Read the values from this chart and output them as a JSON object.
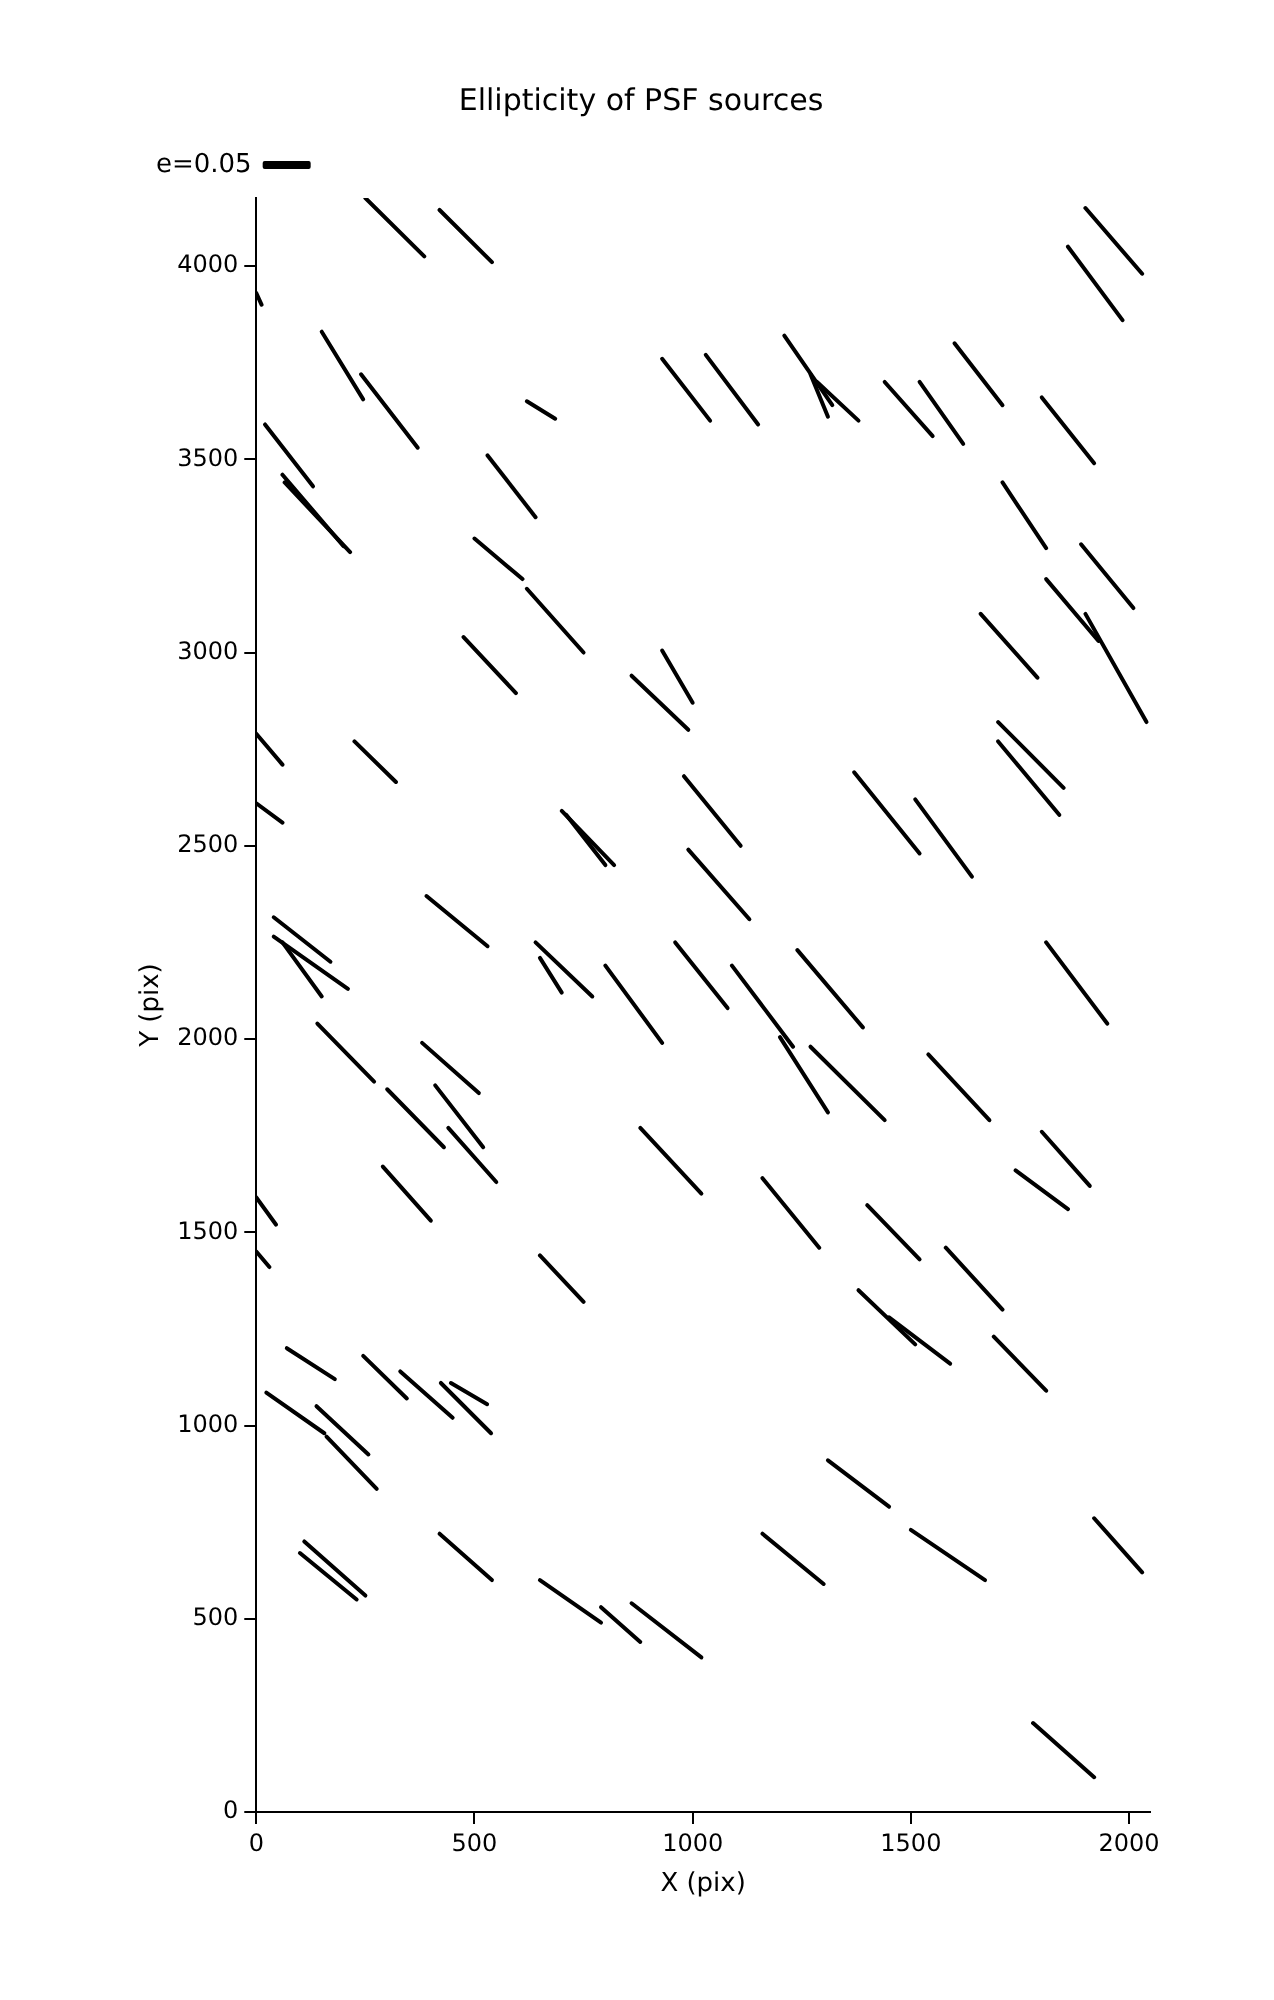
{
  "chart_data": {
    "type": "line",
    "title": "Ellipticity of PSF sources",
    "xlabel": "X (pix)",
    "ylabel": "Y (pix)",
    "xlim": [
      0,
      2048
    ],
    "ylim": [
      0,
      4176
    ],
    "xticks": [
      0,
      500,
      1000,
      1500,
      2000
    ],
    "yticks": [
      0,
      500,
      1000,
      1500,
      2000,
      2500,
      3000,
      3500,
      4000
    ],
    "grid": false,
    "legend": "top left",
    "marker": "none",
    "line_style": "solid",
    "series": [
      {
        "name": "e=0.05",
        "color": "#000000",
        "x": [
          250,
          385
        ],
        "values": [
          4176,
          4025
        ]
      },
      {
        "color": "#000000",
        "x": [
          420,
          540
        ],
        "values": [
          4145,
          4010
        ]
      },
      {
        "color": "#000000",
        "x": [
          0,
          12
        ],
        "values": [
          3930,
          3900
        ]
      },
      {
        "color": "#000000",
        "x": [
          150,
          245
        ],
        "values": [
          3830,
          3655
        ]
      },
      {
        "color": "#000000",
        "x": [
          240,
          370
        ],
        "values": [
          3720,
          3530
        ]
      },
      {
        "color": "#000000",
        "x": [
          20,
          130
        ],
        "values": [
          3590,
          3430
        ]
      },
      {
        "color": "#000000",
        "x": [
          60,
          200
        ],
        "values": [
          3460,
          3275
        ]
      },
      {
        "color": "#000000",
        "x": [
          65,
          215
        ],
        "values": [
          3440,
          3260
        ]
      },
      {
        "color": "#000000",
        "x": [
          620,
          685
        ],
        "values": [
          3650,
          3605
        ]
      },
      {
        "color": "#000000",
        "x": [
          530,
          640
        ],
        "values": [
          3510,
          3350
        ]
      },
      {
        "color": "#000000",
        "x": [
          500,
          610
        ],
        "values": [
          3295,
          3190
        ]
      },
      {
        "color": "#000000",
        "x": [
          620,
          750
        ],
        "values": [
          3165,
          3000
        ]
      },
      {
        "color": "#000000",
        "x": [
          475,
          595
        ],
        "values": [
          3040,
          2895
        ]
      },
      {
        "color": "#000000",
        "x": [
          930,
          1040
        ],
        "values": [
          3760,
          3600
        ]
      },
      {
        "color": "#000000",
        "x": [
          1030,
          1150
        ],
        "values": [
          3770,
          3590
        ]
      },
      {
        "color": "#000000",
        "x": [
          1210,
          1320
        ],
        "values": [
          3820,
          3640
        ]
      },
      {
        "color": "#000000",
        "x": [
          1270,
          1310
        ],
        "values": [
          3720,
          3610
        ]
      },
      {
        "color": "#000000",
        "x": [
          1285,
          1380
        ],
        "values": [
          3700,
          3600
        ]
      },
      {
        "color": "#000000",
        "x": [
          1440,
          1550
        ],
        "values": [
          3700,
          3560
        ]
      },
      {
        "color": "#000000",
        "x": [
          1520,
          1620
        ],
        "values": [
          3700,
          3540
        ]
      },
      {
        "color": "#000000",
        "x": [
          1600,
          1710
        ],
        "values": [
          3800,
          3640
        ]
      },
      {
        "color": "#000000",
        "x": [
          1710,
          1810
        ],
        "values": [
          3440,
          3270
        ]
      },
      {
        "color": "#000000",
        "x": [
          1800,
          1920
        ],
        "values": [
          3660,
          3490
        ]
      },
      {
        "color": "#000000",
        "x": [
          1900,
          2030
        ],
        "values": [
          4150,
          3980
        ]
      },
      {
        "color": "#000000",
        "x": [
          1860,
          1985
        ],
        "values": [
          4050,
          3860
        ]
      },
      {
        "color": "#000000",
        "x": [
          1890,
          2010
        ],
        "values": [
          3280,
          3115
        ]
      },
      {
        "color": "#000000",
        "x": [
          1900,
          2040
        ],
        "values": [
          3100,
          2820
        ]
      },
      {
        "color": "#000000",
        "x": [
          1660,
          1790
        ],
        "values": [
          3100,
          2935
        ]
      },
      {
        "color": "#000000",
        "x": [
          1810,
          1930
        ],
        "values": [
          3190,
          3030
        ]
      },
      {
        "color": "#000000",
        "x": [
          860,
          990
        ],
        "values": [
          2940,
          2800
        ]
      },
      {
        "color": "#000000",
        "x": [
          930,
          1000
        ],
        "values": [
          3005,
          2870
        ]
      },
      {
        "color": "#000000",
        "x": [
          0,
          60
        ],
        "values": [
          2790,
          2710
        ]
      },
      {
        "color": "#000000",
        "x": [
          225,
          320
        ],
        "values": [
          2770,
          2665
        ]
      },
      {
        "color": "#000000",
        "x": [
          0,
          60
        ],
        "values": [
          2610,
          2560
        ]
      },
      {
        "color": "#000000",
        "x": [
          700,
          820
        ],
        "values": [
          2590,
          2450
        ]
      },
      {
        "color": "#000000",
        "x": [
          710,
          800
        ],
        "values": [
          2580,
          2450
        ]
      },
      {
        "color": "#000000",
        "x": [
          980,
          1110
        ],
        "values": [
          2680,
          2500
        ]
      },
      {
        "color": "#000000",
        "x": [
          990,
          1130
        ],
        "values": [
          2490,
          2310
        ]
      },
      {
        "color": "#000000",
        "x": [
          1370,
          1520
        ],
        "values": [
          2690,
          2480
        ]
      },
      {
        "color": "#000000",
        "x": [
          1510,
          1640
        ],
        "values": [
          2620,
          2420
        ]
      },
      {
        "color": "#000000",
        "x": [
          1700,
          1850
        ],
        "values": [
          2820,
          2650
        ]
      },
      {
        "color": "#000000",
        "x": [
          1700,
          1840
        ],
        "values": [
          2770,
          2580
        ]
      },
      {
        "color": "#000000",
        "x": [
          40,
          170
        ],
        "values": [
          2315,
          2200
        ]
      },
      {
        "color": "#000000",
        "x": [
          40,
          210
        ],
        "values": [
          2265,
          2130
        ]
      },
      {
        "color": "#000000",
        "x": [
          60,
          150
        ],
        "values": [
          2250,
          2110
        ]
      },
      {
        "color": "#000000",
        "x": [
          390,
          530
        ],
        "values": [
          2370,
          2240
        ]
      },
      {
        "color": "#000000",
        "x": [
          640,
          770
        ],
        "values": [
          2250,
          2110
        ]
      },
      {
        "color": "#000000",
        "x": [
          650,
          700
        ],
        "values": [
          2210,
          2120
        ]
      },
      {
        "color": "#000000",
        "x": [
          800,
          930
        ],
        "values": [
          2190,
          1990
        ]
      },
      {
        "color": "#000000",
        "x": [
          960,
          1080
        ],
        "values": [
          2250,
          2080
        ]
      },
      {
        "color": "#000000",
        "x": [
          1090,
          1230
        ],
        "values": [
          2190,
          1980
        ]
      },
      {
        "color": "#000000",
        "x": [
          1240,
          1390
        ],
        "values": [
          2230,
          2030
        ]
      },
      {
        "color": "#000000",
        "x": [
          1200,
          1310
        ],
        "values": [
          2005,
          1810
        ]
      },
      {
        "color": "#000000",
        "x": [
          1270,
          1440
        ],
        "values": [
          1980,
          1790
        ]
      },
      {
        "color": "#000000",
        "x": [
          1540,
          1680
        ],
        "values": [
          1960,
          1790
        ]
      },
      {
        "color": "#000000",
        "x": [
          1810,
          1950
        ],
        "values": [
          2250,
          2040
        ]
      },
      {
        "color": "#000000",
        "x": [
          140,
          270
        ],
        "values": [
          2040,
          1890
        ]
      },
      {
        "color": "#000000",
        "x": [
          300,
          430
        ],
        "values": [
          1870,
          1720
        ]
      },
      {
        "color": "#000000",
        "x": [
          380,
          510
        ],
        "values": [
          1990,
          1860
        ]
      },
      {
        "color": "#000000",
        "x": [
          410,
          520
        ],
        "values": [
          1880,
          1720
        ]
      },
      {
        "color": "#000000",
        "x": [
          440,
          550
        ],
        "values": [
          1770,
          1630
        ]
      },
      {
        "color": "#000000",
        "x": [
          290,
          400
        ],
        "values": [
          1670,
          1530
        ]
      },
      {
        "color": "#000000",
        "x": [
          880,
          1020
        ],
        "values": [
          1770,
          1600
        ]
      },
      {
        "color": "#000000",
        "x": [
          1160,
          1290
        ],
        "values": [
          1640,
          1460
        ]
      },
      {
        "color": "#000000",
        "x": [
          1400,
          1520
        ],
        "values": [
          1570,
          1430
        ]
      },
      {
        "color": "#000000",
        "x": [
          1740,
          1860
        ],
        "values": [
          1660,
          1560
        ]
      },
      {
        "color": "#000000",
        "x": [
          1800,
          1910
        ],
        "values": [
          1760,
          1620
        ]
      },
      {
        "color": "#000000",
        "x": [
          0,
          45
        ],
        "values": [
          1590,
          1520
        ]
      },
      {
        "color": "#000000",
        "x": [
          0,
          30
        ],
        "values": [
          1450,
          1410
        ]
      },
      {
        "color": "#000000",
        "x": [
          650,
          750
        ],
        "values": [
          1440,
          1320
        ]
      },
      {
        "color": "#000000",
        "x": [
          1380,
          1510
        ],
        "values": [
          1350,
          1210
        ]
      },
      {
        "color": "#000000",
        "x": [
          1450,
          1590
        ],
        "values": [
          1280,
          1160
        ]
      },
      {
        "color": "#000000",
        "x": [
          1580,
          1710
        ],
        "values": [
          1460,
          1300
        ]
      },
      {
        "color": "#000000",
        "x": [
          1690,
          1810
        ],
        "values": [
          1230,
          1090
        ]
      },
      {
        "color": "#000000",
        "x": [
          70,
          180
        ],
        "values": [
          1200,
          1120
        ]
      },
      {
        "color": "#000000",
        "x": [
          245,
          345
        ],
        "values": [
          1180,
          1070
        ]
      },
      {
        "color": "#000000",
        "x": [
          330,
          450
        ],
        "values": [
          1140,
          1020
        ]
      },
      {
        "color": "#000000",
        "x": [
          423,
          538
        ],
        "values": [
          1110,
          980
        ]
      },
      {
        "color": "#000000",
        "x": [
          446,
          529
        ],
        "values": [
          1110,
          1055
        ]
      },
      {
        "color": "#000000",
        "x": [
          23,
          156
        ],
        "values": [
          1085,
          980
        ]
      },
      {
        "color": "#000000",
        "x": [
          138,
          257
        ],
        "values": [
          1050,
          925
        ]
      },
      {
        "color": "#000000",
        "x": [
          161,
          276
        ],
        "values": [
          971,
          836
        ]
      },
      {
        "color": "#000000",
        "x": [
          1310,
          1450
        ],
        "values": [
          910,
          790
        ]
      },
      {
        "color": "#000000",
        "x": [
          1500,
          1670
        ],
        "values": [
          730,
          600
        ]
      },
      {
        "color": "#000000",
        "x": [
          1920,
          2030
        ],
        "values": [
          760,
          620
        ]
      },
      {
        "color": "#000000",
        "x": [
          1160,
          1300
        ],
        "values": [
          720,
          590
        ]
      },
      {
        "color": "#000000",
        "x": [
          110,
          250
        ],
        "values": [
          700,
          560
        ]
      },
      {
        "color": "#000000",
        "x": [
          100,
          230
        ],
        "values": [
          670,
          550
        ]
      },
      {
        "color": "#000000",
        "x": [
          420,
          540
        ],
        "values": [
          720,
          600
        ]
      },
      {
        "color": "#000000",
        "x": [
          650,
          790
        ],
        "values": [
          600,
          490
        ]
      },
      {
        "color": "#000000",
        "x": [
          790,
          880
        ],
        "values": [
          530,
          440
        ]
      },
      {
        "color": "#000000",
        "x": [
          860,
          1020
        ],
        "values": [
          540,
          400
        ]
      },
      {
        "color": "#000000",
        "x": [
          1780,
          1920
        ],
        "values": [
          230,
          90
        ]
      }
    ]
  }
}
